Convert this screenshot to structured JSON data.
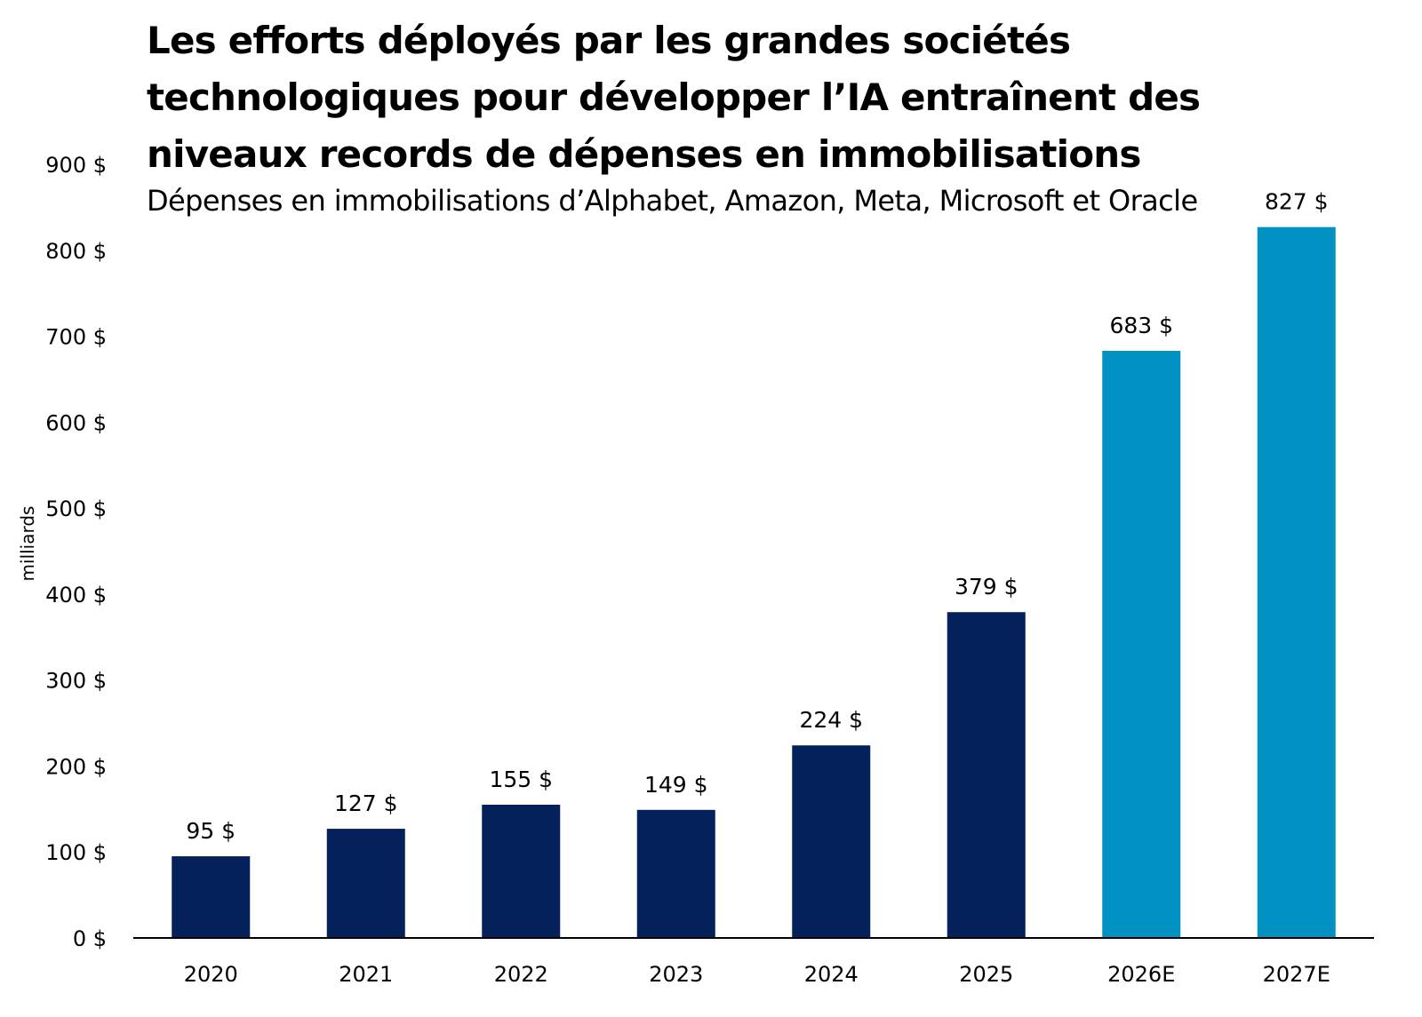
{
  "chart_data": {
    "type": "bar",
    "title_lines": [
      "Les efforts déployés par les grandes sociétés",
      "technologiques pour développer l’IA entraînent des",
      "niveaux records de dépenses en immobilisations"
    ],
    "subtitle": "Dépenses en immobilisations d’Alphabet, Amazon, Meta, Microsoft et Oracle",
    "xlabel": "",
    "ylabel": "milliards",
    "categories": [
      "2020",
      "2021",
      "2022",
      "2023",
      "2024",
      "2025",
      "2026E",
      "2027E"
    ],
    "values": [
      95,
      127,
      155,
      149,
      224,
      379,
      683,
      827
    ],
    "data_labels": [
      "95 $",
      "127 $",
      "155 $",
      "149 $",
      "224 $",
      "379 $",
      "683 $",
      "827 $"
    ],
    "bar_kind": [
      "actual",
      "actual",
      "actual",
      "actual",
      "actual",
      "actual",
      "estimate",
      "estimate"
    ],
    "ylim": [
      0,
      900
    ],
    "yticks": [
      0,
      100,
      200,
      300,
      400,
      500,
      600,
      700,
      800,
      900
    ],
    "ytick_labels": [
      "0 $",
      "100 $",
      "200 $",
      "300 $",
      "400 $",
      "500 $",
      "600 $",
      "700 $",
      "800 $",
      "900 $"
    ],
    "grid": false,
    "legend": "none",
    "colors": {
      "actual": "#04215b",
      "estimate": "#0191c3",
      "axis": "#000000"
    }
  }
}
